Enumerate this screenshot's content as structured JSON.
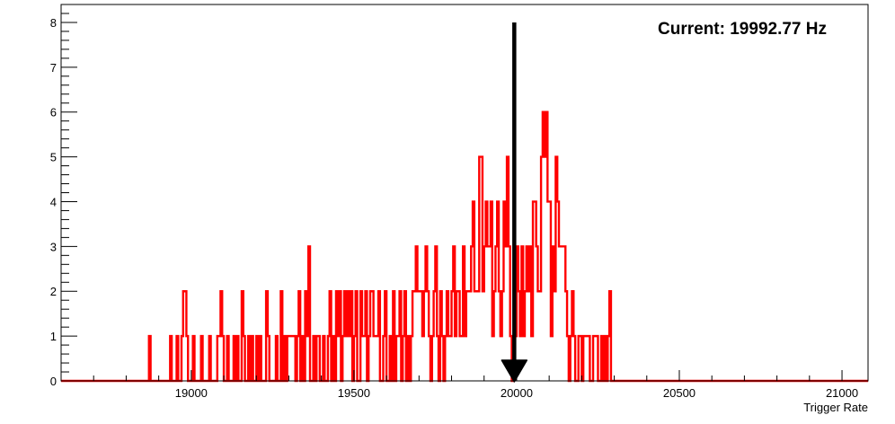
{
  "chart_data": {
    "type": "histogram",
    "title": "",
    "xlabel": "Trigger Rate",
    "ylabel": "",
    "xlim": [
      18600,
      21080
    ],
    "ylim": [
      0,
      8.4
    ],
    "x_ticks": [
      19000,
      19500,
      20000,
      20500,
      21000
    ],
    "y_ticks": [
      0,
      1,
      2,
      3,
      4,
      5,
      6,
      7,
      8
    ],
    "bin_width": 5,
    "grid": false,
    "legend": "none",
    "line_color": "#ff0000",
    "marker_color": "#000000",
    "annotation": "Current: 19992.77 Hz",
    "current_value": 19992.77,
    "marker_top": 8,
    "series": [
      {
        "bins": [
          [
            18870,
            1
          ],
          [
            18875,
            0
          ],
          [
            18935,
            1
          ],
          [
            18940,
            0
          ],
          [
            18955,
            1
          ],
          [
            18960,
            0
          ],
          [
            18970,
            1
          ],
          [
            18975,
            2
          ],
          [
            18985,
            1
          ],
          [
            18990,
            0
          ],
          [
            19005,
            1
          ],
          [
            19010,
            0
          ],
          [
            19030,
            1
          ],
          [
            19035,
            0
          ],
          [
            19055,
            1
          ],
          [
            19060,
            0
          ],
          [
            19080,
            1
          ],
          [
            19090,
            2
          ],
          [
            19095,
            1
          ],
          [
            19100,
            0
          ],
          [
            19110,
            1
          ],
          [
            19115,
            0
          ],
          [
            19130,
            1
          ],
          [
            19135,
            0
          ],
          [
            19140,
            1
          ],
          [
            19145,
            0
          ],
          [
            19155,
            2
          ],
          [
            19160,
            1
          ],
          [
            19165,
            0
          ],
          [
            19175,
            1
          ],
          [
            19180,
            0
          ],
          [
            19185,
            1
          ],
          [
            19190,
            0
          ],
          [
            19200,
            1
          ],
          [
            19205,
            0
          ],
          [
            19210,
            1
          ],
          [
            19215,
            0
          ],
          [
            19230,
            2
          ],
          [
            19235,
            1
          ],
          [
            19240,
            0
          ],
          [
            19260,
            1
          ],
          [
            19265,
            0
          ],
          [
            19275,
            2
          ],
          [
            19280,
            0
          ],
          [
            19285,
            1
          ],
          [
            19290,
            0
          ],
          [
            19295,
            1
          ],
          [
            19320,
            0
          ],
          [
            19325,
            1
          ],
          [
            19330,
            2
          ],
          [
            19335,
            0
          ],
          [
            19340,
            1
          ],
          [
            19345,
            0
          ],
          [
            19350,
            2
          ],
          [
            19355,
            1
          ],
          [
            19360,
            3
          ],
          [
            19365,
            0
          ],
          [
            19375,
            1
          ],
          [
            19380,
            0
          ],
          [
            19385,
            1
          ],
          [
            19395,
            0
          ],
          [
            19405,
            1
          ],
          [
            19410,
            0
          ],
          [
            19420,
            1
          ],
          [
            19425,
            2
          ],
          [
            19430,
            0
          ],
          [
            19435,
            1
          ],
          [
            19440,
            0
          ],
          [
            19445,
            2
          ],
          [
            19450,
            1
          ],
          [
            19455,
            2
          ],
          [
            19460,
            0
          ],
          [
            19465,
            1
          ],
          [
            19470,
            2
          ],
          [
            19475,
            1
          ],
          [
            19480,
            2
          ],
          [
            19485,
            1
          ],
          [
            19490,
            2
          ],
          [
            19495,
            0
          ],
          [
            19500,
            1
          ],
          [
            19505,
            2
          ],
          [
            19510,
            0
          ],
          [
            19520,
            2
          ],
          [
            19525,
            1
          ],
          [
            19535,
            2
          ],
          [
            19540,
            0
          ],
          [
            19545,
            1
          ],
          [
            19550,
            2
          ],
          [
            19560,
            1
          ],
          [
            19575,
            2
          ],
          [
            19580,
            0
          ],
          [
            19590,
            1
          ],
          [
            19595,
            2
          ],
          [
            19600,
            0
          ],
          [
            19610,
            1
          ],
          [
            19615,
            0
          ],
          [
            19620,
            2
          ],
          [
            19625,
            0
          ],
          [
            19630,
            1
          ],
          [
            19640,
            2
          ],
          [
            19645,
            0
          ],
          [
            19650,
            1
          ],
          [
            19655,
            2
          ],
          [
            19660,
            0
          ],
          [
            19665,
            1
          ],
          [
            19670,
            0
          ],
          [
            19675,
            1
          ],
          [
            19680,
            2
          ],
          [
            19690,
            3
          ],
          [
            19695,
            2
          ],
          [
            19710,
            1
          ],
          [
            19715,
            2
          ],
          [
            19720,
            3
          ],
          [
            19725,
            2
          ],
          [
            19730,
            1
          ],
          [
            19735,
            0
          ],
          [
            19740,
            1
          ],
          [
            19745,
            2
          ],
          [
            19750,
            3
          ],
          [
            19755,
            1
          ],
          [
            19760,
            0
          ],
          [
            19765,
            2
          ],
          [
            19770,
            1
          ],
          [
            19775,
            0
          ],
          [
            19780,
            1
          ],
          [
            19785,
            2
          ],
          [
            19790,
            1
          ],
          [
            19800,
            2
          ],
          [
            19805,
            3
          ],
          [
            19810,
            1
          ],
          [
            19815,
            2
          ],
          [
            19825,
            1
          ],
          [
            19835,
            3
          ],
          [
            19840,
            1
          ],
          [
            19845,
            2
          ],
          [
            19860,
            3
          ],
          [
            19865,
            4
          ],
          [
            19870,
            2
          ],
          [
            19885,
            5
          ],
          [
            19895,
            2
          ],
          [
            19900,
            3
          ],
          [
            19905,
            4
          ],
          [
            19910,
            3
          ],
          [
            19920,
            4
          ],
          [
            19925,
            1
          ],
          [
            19930,
            2
          ],
          [
            19935,
            3
          ],
          [
            19940,
            4
          ],
          [
            19945,
            2
          ],
          [
            19950,
            1
          ],
          [
            19955,
            2
          ],
          [
            19960,
            4
          ],
          [
            19965,
            3
          ],
          [
            19970,
            5
          ],
          [
            19975,
            3
          ],
          [
            19980,
            1
          ],
          [
            19985,
            0
          ],
          [
            19990,
            1
          ],
          [
            20000,
            3
          ],
          [
            20005,
            2
          ],
          [
            20010,
            1
          ],
          [
            20015,
            3
          ],
          [
            20020,
            1
          ],
          [
            20025,
            2
          ],
          [
            20030,
            3
          ],
          [
            20035,
            2
          ],
          [
            20040,
            3
          ],
          [
            20045,
            1
          ],
          [
            20050,
            4
          ],
          [
            20060,
            3
          ],
          [
            20065,
            2
          ],
          [
            20075,
            5
          ],
          [
            20080,
            6
          ],
          [
            20085,
            5
          ],
          [
            20090,
            6
          ],
          [
            20095,
            4
          ],
          [
            20105,
            1
          ],
          [
            20110,
            3
          ],
          [
            20115,
            2
          ],
          [
            20120,
            5
          ],
          [
            20125,
            4
          ],
          [
            20130,
            3
          ],
          [
            20150,
            2
          ],
          [
            20155,
            1
          ],
          [
            20160,
            0
          ],
          [
            20165,
            1
          ],
          [
            20170,
            2
          ],
          [
            20175,
            1
          ],
          [
            20180,
            0
          ],
          [
            20190,
            1
          ],
          [
            20200,
            0
          ],
          [
            20205,
            1
          ],
          [
            20225,
            0
          ],
          [
            20235,
            1
          ],
          [
            20250,
            0
          ],
          [
            20260,
            1
          ],
          [
            20265,
            0
          ],
          [
            20270,
            1
          ],
          [
            20275,
            0
          ],
          [
            20280,
            1
          ],
          [
            20285,
            2
          ],
          [
            20290,
            0
          ]
        ]
      }
    ]
  }
}
